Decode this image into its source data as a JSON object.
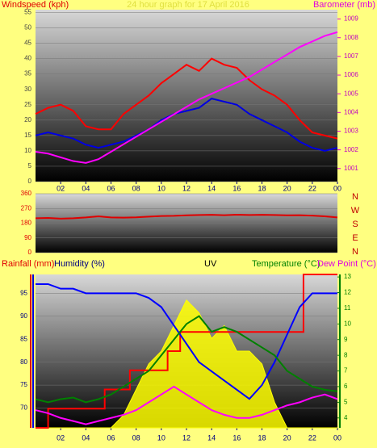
{
  "chart_data": [
    {
      "type": "line",
      "title": "24 hour graph for 17 April 2016",
      "axis_labels": [
        {
          "text": "Windspeed (kph)",
          "color": "#e00000"
        },
        {
          "text": "Barometer (mb)",
          "color": "#e000e0"
        }
      ],
      "xlim": [
        0,
        24
      ],
      "xticks": [
        {
          "value": 2,
          "label": "02"
        },
        {
          "value": 4,
          "label": "04"
        },
        {
          "value": 6,
          "label": "06"
        },
        {
          "value": 8,
          "label": "08"
        },
        10,
        12,
        14,
        16,
        18,
        20,
        22,
        {
          "value": 24,
          "label": "00"
        }
      ],
      "ylim": [
        0,
        55.9
      ],
      "yticks": [
        0,
        5,
        10,
        15,
        20,
        25,
        30,
        35,
        40,
        45,
        50,
        55
      ],
      "y2lim": [
        1000.3,
        1009.5
      ],
      "y2ticks": [
        1001,
        1002,
        1003,
        1004,
        1005,
        1006,
        1007,
        1008,
        1009
      ],
      "x": [
        0,
        1,
        2,
        3,
        4,
        5,
        6,
        7,
        8,
        9,
        10,
        11,
        12,
        13,
        14,
        15,
        16,
        17,
        18,
        19,
        20,
        21,
        22,
        23,
        24
      ],
      "series": [
        {
          "name": "Gust",
          "color": "#ff0000",
          "values": [
            22,
            24,
            25,
            23,
            18,
            17,
            17,
            22,
            25,
            28,
            32,
            35,
            38,
            36,
            40,
            38,
            37,
            33,
            30,
            28,
            25,
            20,
            16,
            15,
            14
          ]
        },
        {
          "name": "Average",
          "color": "#0000e0",
          "values": [
            15,
            16,
            15,
            14,
            12,
            11,
            12,
            13,
            15,
            17,
            20,
            22,
            23,
            24,
            27,
            26,
            25,
            22,
            20,
            18,
            16,
            13,
            11,
            10,
            11
          ]
        },
        {
          "name": "Barometer",
          "color": "#ff00ff",
          "axis": "y2",
          "values": [
            1001.9,
            1001.8,
            1001.6,
            1001.4,
            1001.3,
            1001.5,
            1001.9,
            1002.3,
            1002.7,
            1003.1,
            1003.5,
            1003.9,
            1004.3,
            1004.7,
            1005.0,
            1005.3,
            1005.6,
            1005.9,
            1006.3,
            1006.7,
            1007.1,
            1007.5,
            1007.8,
            1008.1,
            1008.3
          ]
        }
      ]
    },
    {
      "type": "line",
      "xlim": [
        0,
        24
      ],
      "ylim": [
        0,
        360
      ],
      "yticks": [
        0,
        90,
        180,
        270,
        360
      ],
      "compass_labels": [
        "N",
        "W",
        "S",
        "E",
        "N"
      ],
      "x": [
        0,
        1,
        2,
        3,
        4,
        5,
        6,
        7,
        8,
        9,
        10,
        11,
        12,
        13,
        14,
        15,
        16,
        17,
        18,
        19,
        20,
        21,
        22,
        23,
        24
      ],
      "series": [
        {
          "name": "Direction",
          "color": "#e00000",
          "values": [
            210,
            212,
            208,
            210,
            215,
            222,
            215,
            214,
            216,
            220,
            224,
            225,
            228,
            230,
            231,
            229,
            232,
            230,
            231,
            230,
            228,
            229,
            226,
            222,
            215
          ]
        }
      ]
    },
    {
      "type": "line",
      "axis_labels": [
        {
          "text": "Rainfall (mm)",
          "color": "#e00000"
        },
        {
          "text": "Humidity (%)",
          "color": "#000080"
        },
        {
          "text": "UV",
          "color": "#000000"
        },
        {
          "text": "Temperature (°C)",
          "color": "#008000"
        },
        {
          "text": "Dew Point (°C)",
          "color": "#e000e0"
        }
      ],
      "xlim": [
        0,
        24
      ],
      "xticks": [
        {
          "value": 2,
          "label": "02"
        },
        {
          "value": 4,
          "label": "04"
        },
        {
          "value": 6,
          "label": "06"
        },
        {
          "value": 8,
          "label": "08"
        },
        10,
        12,
        14,
        16,
        18,
        20,
        22,
        {
          "value": 24,
          "label": "00"
        }
      ],
      "ylim": [
        65.7,
        99.1
      ],
      "yticks": [
        70,
        75,
        80,
        85,
        90,
        95
      ],
      "y2lim": [
        3.37,
        13.16
      ],
      "y2ticks": [
        4,
        5,
        6,
        7,
        8,
        9,
        10,
        11,
        12,
        13
      ],
      "y3lim": [
        0,
        2
      ],
      "y4lim": [
        0,
        6
      ],
      "x": [
        0,
        1,
        2,
        3,
        4,
        5,
        6,
        7,
        8,
        9,
        10,
        11,
        12,
        13,
        14,
        15,
        16,
        17,
        18,
        19,
        20,
        21,
        22,
        23,
        24
      ],
      "series": [
        {
          "name": "UV",
          "color": "#ffff00",
          "axis": "y4",
          "area": true,
          "values": [
            0,
            0,
            0,
            0,
            0,
            0,
            0,
            0.5,
            1.5,
            2.5,
            3,
            4,
            5,
            4.5,
            3.5,
            4,
            3,
            3,
            2.5,
            1,
            0,
            0,
            0,
            0,
            0
          ]
        },
        {
          "name": "Rainfall",
          "color": "#ff0000",
          "axis": "y3",
          "step": true,
          "x": [
            0,
            1,
            5.5,
            7.5,
            10.5,
            11.5,
            21.3,
            24
          ],
          "values": [
            0,
            0.25,
            0.5,
            0.75,
            1.0,
            1.25,
            2.0,
            2.0
          ]
        },
        {
          "name": "Humidity",
          "color": "#0000ff",
          "values": [
            97,
            97,
            96,
            96,
            95,
            95,
            95,
            95,
            95,
            94,
            92,
            88,
            84,
            80,
            78,
            76,
            74,
            72,
            75,
            80,
            86,
            92,
            95,
            95,
            95
          ]
        },
        {
          "name": "Temperature",
          "color": "#008000",
          "axis": "y2",
          "values": [
            5.2,
            5.0,
            5.2,
            5.3,
            5.0,
            5.2,
            5.5,
            6.0,
            6.5,
            7.0,
            8.0,
            9.0,
            10.0,
            10.5,
            9.5,
            9.8,
            9.5,
            9.0,
            8.5,
            8.0,
            7.0,
            6.5,
            6.0,
            5.8,
            5.7
          ]
        },
        {
          "name": "Dew Point",
          "color": "#ff00ff",
          "axis": "y2",
          "values": [
            4.5,
            4.3,
            4.0,
            3.8,
            3.6,
            3.8,
            4.0,
            4.2,
            4.5,
            5.0,
            5.5,
            6.0,
            5.5,
            5.0,
            4.5,
            4.2,
            4.0,
            4.0,
            4.2,
            4.5,
            4.8,
            5.0,
            5.3,
            5.5,
            5.2
          ]
        }
      ]
    }
  ]
}
